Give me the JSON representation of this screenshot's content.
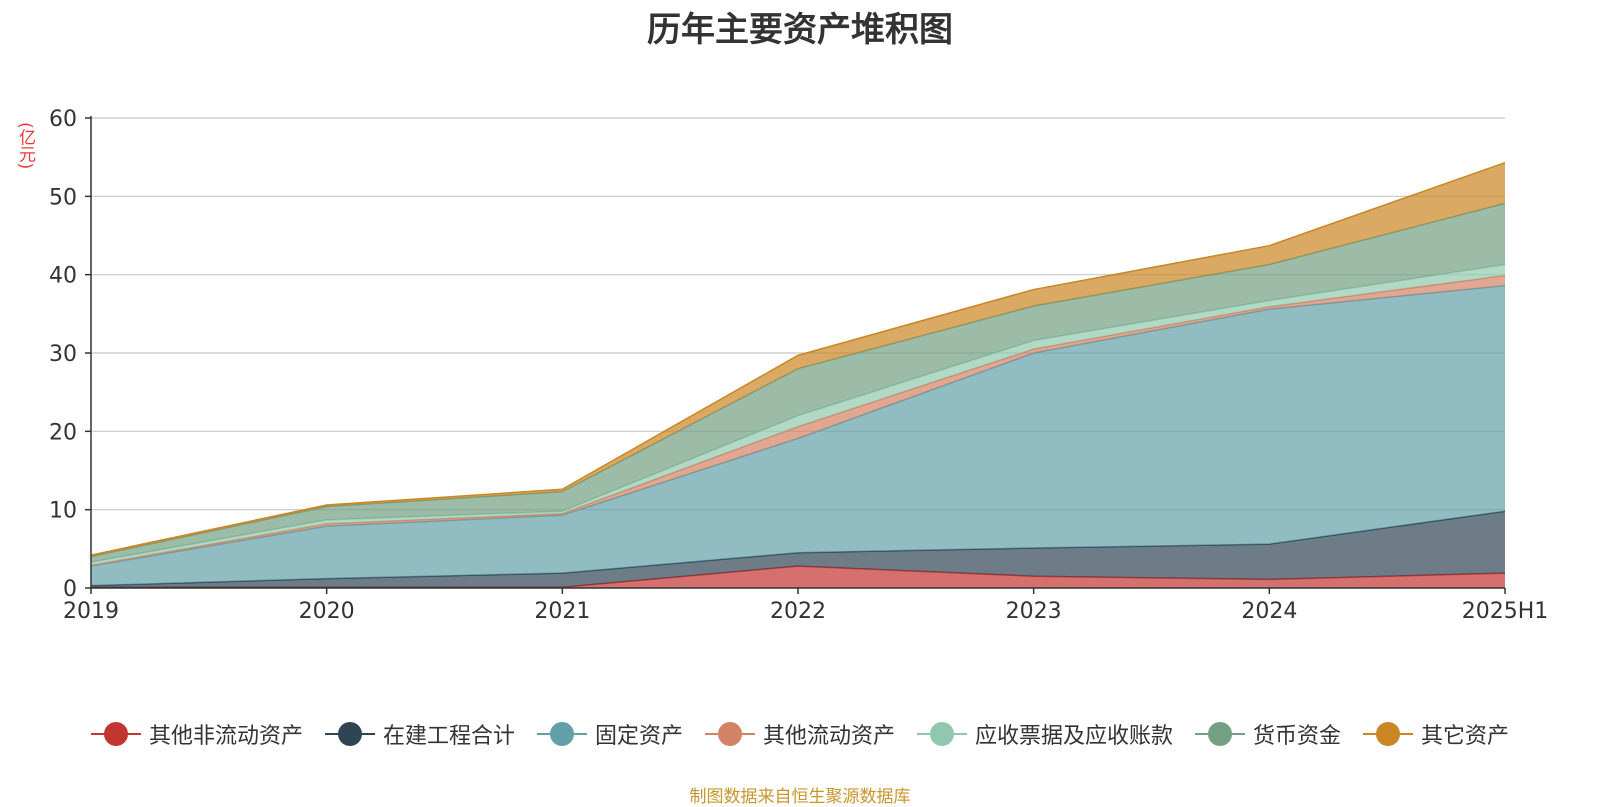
{
  "chart_data": {
    "type": "area",
    "title": "历年主要资产堆积图",
    "ylabel": "(亿元)",
    "xlabel": "",
    "categories": [
      "2019",
      "2020",
      "2021",
      "2022",
      "2023",
      "2024",
      "2025H1"
    ],
    "ylim": [
      0,
      60
    ],
    "yticks": [
      0,
      10,
      20,
      30,
      40,
      50,
      60
    ],
    "stacked": true,
    "grid": true,
    "legend_position": "bottom",
    "series": [
      {
        "name": "其他非流动资产",
        "color": "#c23531",
        "values": [
          0.1,
          0.1,
          0.1,
          2.8,
          1.5,
          1.1,
          1.9
        ]
      },
      {
        "name": "在建工程合计",
        "color": "#2f4554",
        "values": [
          0.2,
          1.1,
          1.8,
          1.7,
          3.6,
          4.5,
          7.9
        ]
      },
      {
        "name": "固定资产",
        "color": "#61a0a8",
        "values": [
          2.5,
          6.7,
          7.4,
          14.6,
          24.9,
          30.0,
          28.8
        ]
      },
      {
        "name": "其他流动资产",
        "color": "#d48265",
        "values": [
          0.1,
          0.3,
          0.2,
          1.5,
          0.5,
          0.3,
          1.3
        ]
      },
      {
        "name": "应收票据及应收账款",
        "color": "#91c7ae",
        "values": [
          0.4,
          0.5,
          0.3,
          1.4,
          1.1,
          0.8,
          1.4
        ]
      },
      {
        "name": "货币资金",
        "color": "#749f83",
        "values": [
          0.7,
          1.7,
          2.5,
          6.0,
          4.4,
          4.6,
          7.8
        ]
      },
      {
        "name": "其它资产",
        "color": "#ca8622",
        "values": [
          0.2,
          0.2,
          0.3,
          1.7,
          2.1,
          2.4,
          5.2
        ]
      }
    ],
    "source_note": "制图数据来自恒生聚源数据库"
  }
}
